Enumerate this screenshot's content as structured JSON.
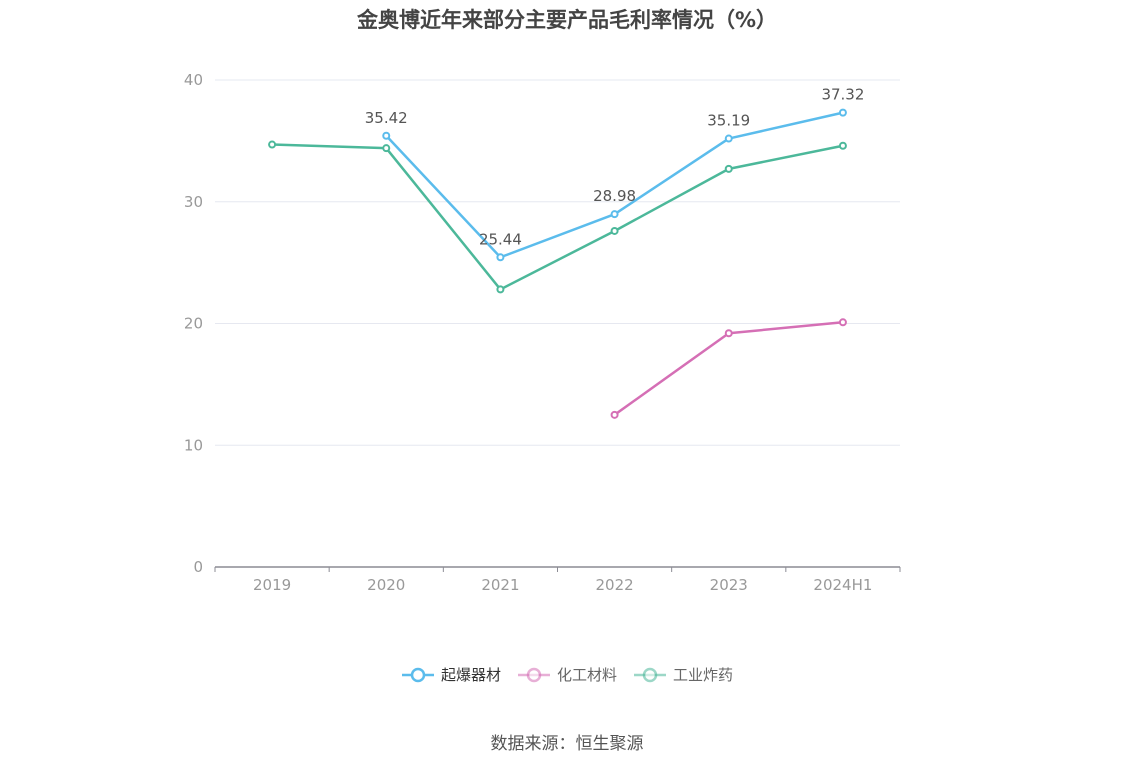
{
  "chart_data": {
    "type": "line",
    "title": "金奥博近年来部分主要产品毛利率情况（%）",
    "categories": [
      "2019",
      "2020",
      "2021",
      "2022",
      "2023",
      "2024H1"
    ],
    "ylim": [
      0,
      40
    ],
    "yticks": [
      0,
      10,
      20,
      30,
      40
    ],
    "grid": true,
    "legend_position": "bottom",
    "series": [
      {
        "name": "起爆器材",
        "color": "#5bbcec",
        "values": [
          null,
          35.42,
          25.44,
          28.98,
          35.19,
          37.32
        ],
        "labels": [
          "",
          "35.42",
          "25.44",
          "28.98",
          "35.19",
          "37.32"
        ]
      },
      {
        "name": "化工材料",
        "color": "#d56fb5",
        "values": [
          null,
          null,
          null,
          12.5,
          19.2,
          20.1
        ],
        "labels": [
          "",
          "",
          "",
          "",
          "",
          ""
        ]
      },
      {
        "name": "工业炸药",
        "color": "#4cb89a",
        "values": [
          34.7,
          34.4,
          22.8,
          27.6,
          32.7,
          34.6
        ],
        "labels": [
          "",
          "",
          "",
          "",
          "",
          ""
        ]
      }
    ]
  },
  "source": "数据来源：恒生聚源"
}
